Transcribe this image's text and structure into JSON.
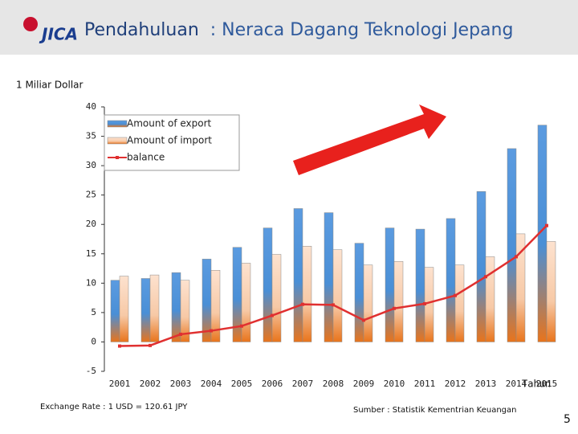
{
  "header": {
    "logo": "JICA",
    "title": "Pendahuluan",
    "subtitle": ": Neraca Dagang Teknologi Jepang"
  },
  "chart_data": {
    "type": "bar",
    "ylabel": "1 Miliar Dollar",
    "xlabel": "Tahun",
    "categories": [
      "2001",
      "2002",
      "2003",
      "2004",
      "2005",
      "2006",
      "2007",
      "2008",
      "2009",
      "2010",
      "2011",
      "2012",
      "2013",
      "2014",
      "2015"
    ],
    "series": [
      {
        "name": "Amount of export",
        "color": "#4a8fd6",
        "kind": "bar",
        "values": [
          10.5,
          10.8,
          11.8,
          14.1,
          16.1,
          19.4,
          22.7,
          22.0,
          16.8,
          19.4,
          19.2,
          21.0,
          25.6,
          32.9,
          36.9
        ]
      },
      {
        "name": "Amount of import",
        "color": "#f7c9a6",
        "kind": "bar",
        "values": [
          11.2,
          11.4,
          10.5,
          12.2,
          13.4,
          14.9,
          16.3,
          15.7,
          13.1,
          13.7,
          12.7,
          13.1,
          14.5,
          18.4,
          17.1
        ]
      },
      {
        "name": "balance",
        "color": "#e03030",
        "kind": "line",
        "values": [
          -0.7,
          -0.6,
          1.3,
          1.9,
          2.7,
          4.5,
          6.4,
          6.3,
          3.7,
          5.7,
          6.5,
          7.9,
          11.1,
          14.5,
          19.8
        ]
      }
    ],
    "ylim": [
      -5,
      40
    ],
    "yticks": [
      -5,
      0,
      5,
      10,
      15,
      20,
      25,
      30,
      35,
      40
    ],
    "grid": false,
    "legend": "top-left"
  },
  "footer": {
    "exchange_rate": "Exchange Rate : 1 USD = 120.61 JPY",
    "source": "Sumber : Statistik Kementrian Keuangan",
    "page_number": "5"
  }
}
